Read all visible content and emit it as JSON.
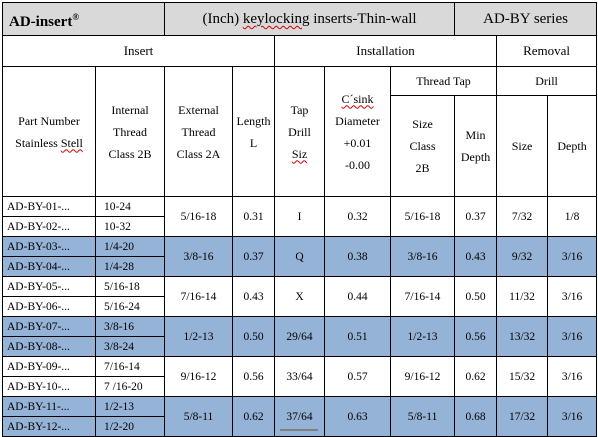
{
  "title": {
    "brand": "AD-insert",
    "brand_mark": "®",
    "product": "(Inch) keylocking inserts-Thin-wall",
    "series": "AD-BY series"
  },
  "groups": {
    "insert": "Insert",
    "installation": "Installation",
    "removal": "Removal",
    "thread_tap": "Thread Tap",
    "drill": "Drill"
  },
  "headers": {
    "part_number": [
      "Part Number",
      "Stainless Stell"
    ],
    "internal_thread": [
      "Internal",
      "Thread",
      "Class 2B"
    ],
    "external_thread": [
      "External",
      "Thread",
      "Class 2A"
    ],
    "length": [
      "Length",
      "L"
    ],
    "tap_drill": [
      "Tap",
      "Drill",
      "Siz"
    ],
    "csink": [
      "C´sink",
      "Diameter",
      "+0.01",
      "-0.00"
    ],
    "size_class": [
      "Size",
      "Class",
      "2B"
    ],
    "min_depth": [
      "Min",
      "Depth"
    ],
    "drill_size": "Size",
    "drill_depth": "Depth"
  },
  "rows": [
    {
      "parts": [
        "AD-BY-01-...",
        "AD-BY-02-..."
      ],
      "internal": [
        "10-24",
        "10-32"
      ],
      "external": "5/16-18",
      "length": "0.31",
      "tap_drill": "I",
      "csink": "0.32",
      "tap_size": "5/16-18",
      "min_depth": "0.37",
      "drill_size": "7/32",
      "drill_depth": "1/8"
    },
    {
      "parts": [
        "AD-BY-03-...",
        "AD-BY-04-..."
      ],
      "internal": [
        "1/4-20",
        "1/4-28"
      ],
      "external": "3/8-16",
      "length": "0.37",
      "tap_drill": "Q",
      "csink": "0.38",
      "tap_size": "3/8-16",
      "min_depth": "0.43",
      "drill_size": "9/32",
      "drill_depth": "3/16"
    },
    {
      "parts": [
        "AD-BY-05-...",
        "AD-BY-06-..."
      ],
      "internal": [
        "5/16-18",
        "5/16-24"
      ],
      "external": "7/16-14",
      "length": "0.43",
      "tap_drill": "X",
      "csink": "0.44",
      "tap_size": "7/16-14",
      "min_depth": "0.50",
      "drill_size": "11/32",
      "drill_depth": "3/16"
    },
    {
      "parts": [
        "AD-BY-07-...",
        "AD-BY-08-..."
      ],
      "internal": [
        "3/8-16",
        "3/8-24"
      ],
      "external": "1/2-13",
      "length": "0.50",
      "tap_drill": "29/64",
      "csink": "0.51",
      "tap_size": "1/2-13",
      "min_depth": "0.56",
      "drill_size": "13/32",
      "drill_depth": "3/16"
    },
    {
      "parts": [
        "AD-BY-09-...",
        "AD-BY-10-..."
      ],
      "internal": [
        "7/16-14",
        "7 /16-20"
      ],
      "external": "9/16-12",
      "length": "0.56",
      "tap_drill": "33/64",
      "csink": "0.57",
      "tap_size": "9/16-12",
      "min_depth": "0.62",
      "drill_size": "15/32",
      "drill_depth": "3/16"
    },
    {
      "parts": [
        "AD-BY-11-...",
        "AD-BY-12-..."
      ],
      "internal": [
        "1/2-13",
        "1/2-20"
      ],
      "external": "5/8-11",
      "length": "0.62",
      "tap_drill": "37/64",
      "csink": "0.63",
      "tap_size": "5/8-11",
      "min_depth": "0.68",
      "drill_size": "17/32",
      "drill_depth": "3/16"
    }
  ],
  "colors": {
    "title_bg": "#d9d9d9",
    "shaded_row": "#95b3d7",
    "plain_row": "#ffffff",
    "spell_underline": "#d00000"
  }
}
